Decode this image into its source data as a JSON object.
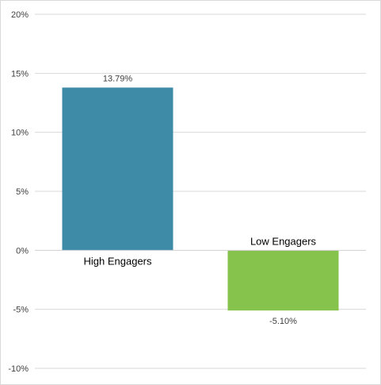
{
  "chart_data": {
    "type": "bar",
    "categories": [
      "High Engagers",
      "Low Engagers"
    ],
    "values": [
      13.79,
      -5.1
    ],
    "value_unit": "%",
    "data_labels": [
      "13.79%",
      "-5.10%"
    ],
    "title": "",
    "xlabel": "",
    "ylabel": "",
    "ylim": [
      -10,
      20
    ],
    "yticks": [
      20,
      15,
      10,
      5,
      0,
      -5,
      -10
    ],
    "ytick_labels": [
      "20%",
      "15%",
      "10%",
      "5%",
      "0%",
      "-5%",
      "-10%"
    ],
    "grid": true,
    "legend": false,
    "bar_colors": [
      "#3e8ba8",
      "#86c34c"
    ],
    "gridline_color": "#d9d9d9",
    "axis_line_color": "#d0d0d0"
  }
}
